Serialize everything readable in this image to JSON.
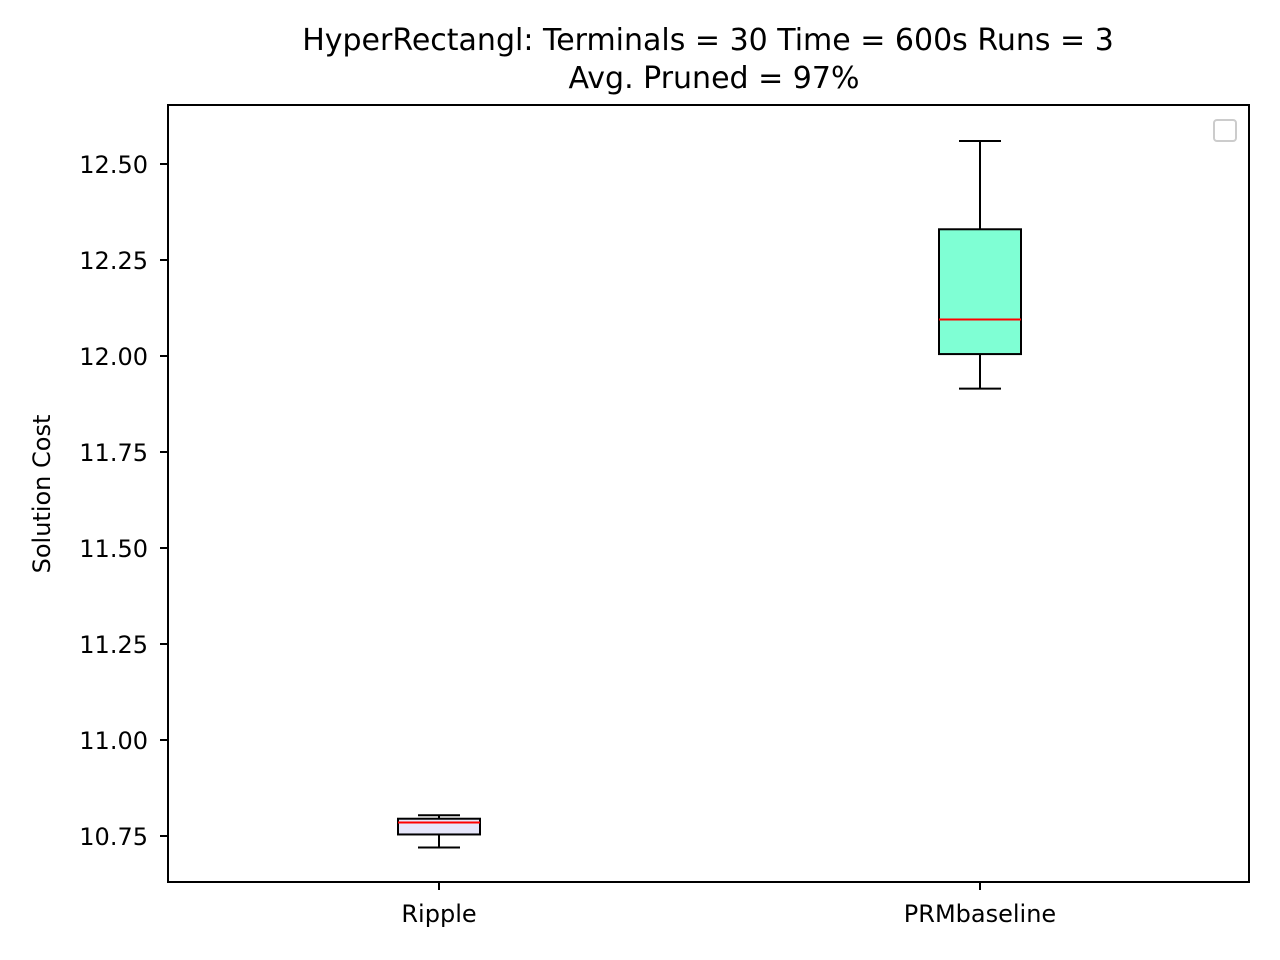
{
  "chart_data": {
    "type": "box",
    "title_line1": "HyperRectangl:  Terminals = 30  Time = 600s  Runs = 3",
    "title_line2": "Avg. Pruned = 97%",
    "xlabel": "",
    "ylabel": "Solution Cost",
    "ylim": [
      10.63,
      12.65
    ],
    "yticks": [
      10.75,
      11.0,
      11.25,
      11.5,
      11.75,
      12.0,
      12.25,
      12.5
    ],
    "ytick_labels": [
      "10.75",
      "11.00",
      "11.25",
      "11.50",
      "11.75",
      "12.00",
      "12.25",
      "12.50"
    ],
    "categories": [
      "Ripple",
      "PRMbaseline"
    ],
    "boxes": [
      {
        "name": "Ripple",
        "whislo": 10.72,
        "q1": 10.754,
        "med": 10.785,
        "q3": 10.795,
        "whishi": 10.804,
        "color": "#e6e6fa"
      },
      {
        "name": "PRMbaseline",
        "whislo": 11.915,
        "q1": 12.005,
        "med": 12.095,
        "q3": 12.33,
        "whishi": 12.56,
        "color": "#7fffd4"
      }
    ],
    "median_color": "#ff0000",
    "legend": "top-right (empty)",
    "grid": false
  }
}
